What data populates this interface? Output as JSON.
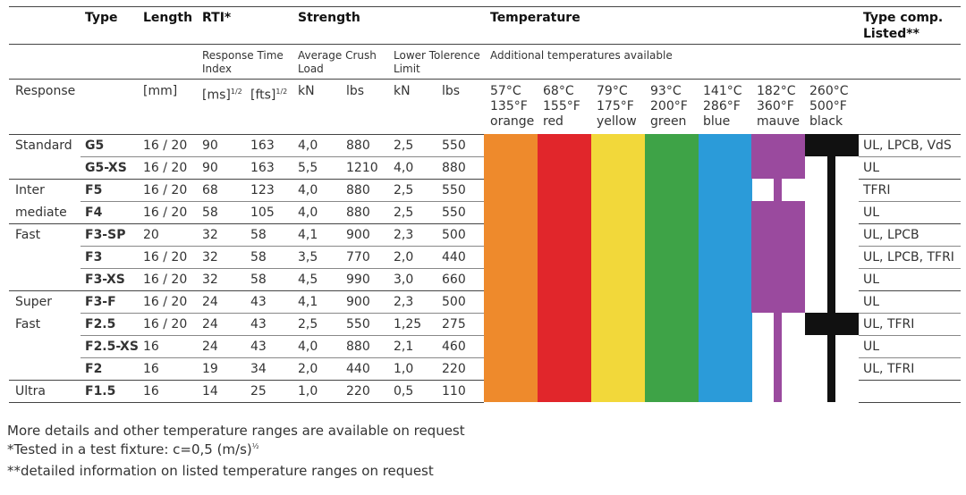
{
  "header": {
    "type": "Type",
    "length": "Length",
    "rti": "RTI*",
    "strength": "Strength",
    "temperature": "Temperature",
    "type_comp": "Type comp.",
    "listed": "Listed**"
  },
  "subheader": {
    "rti_desc": "Response Time Index",
    "crush_desc": "Average Crush Load",
    "tolerance_desc": "Lower Tolerence Limit",
    "temp_desc": "Additional temperatures available"
  },
  "units": {
    "response": "Response",
    "mm": "[mm]",
    "ms": "[ms]",
    "fts": "[fts]",
    "exp": "1/2",
    "kn1": "kN",
    "lbs1": "lbs",
    "kn2": "kN",
    "lbs2": "lbs"
  },
  "temperatures": [
    {
      "c": "57°C",
      "f": "135°F",
      "name": "orange",
      "color": "#ee8a2c"
    },
    {
      "c": "68°C",
      "f": "155°F",
      "name": "red",
      "color": "#e1262b"
    },
    {
      "c": "79°C",
      "f": "175°F",
      "name": "yellow",
      "color": "#f2d83a"
    },
    {
      "c": "93°C",
      "f": "200°F",
      "name": "green",
      "color": "#3ea347"
    },
    {
      "c": "141°C",
      "f": "286°F",
      "name": "blue",
      "color": "#2b9bd9"
    },
    {
      "c": "182°C",
      "f": "360°F",
      "name": "mauve",
      "color": "#9a4a9e"
    },
    {
      "c": "260°C",
      "f": "500°F",
      "name": "black",
      "color": "#111111"
    }
  ],
  "rows": [
    {
      "response": "Standard",
      "type": "G5",
      "length": "16 / 20",
      "ms": "90",
      "fts": "163",
      "kn": "4,0",
      "lbs": "880",
      "tkn": "2,5",
      "tlbs": "550",
      "listed": "UL, LPCB, VdS"
    },
    {
      "response": "",
      "type": "G5-XS",
      "length": "16 / 20",
      "ms": "90",
      "fts": "163",
      "kn": "5,5",
      "lbs": "1210",
      "tkn": "4,0",
      "tlbs": "880",
      "listed": "UL"
    },
    {
      "response": "Inter",
      "type": "F5",
      "length": "16 / 20",
      "ms": "68",
      "fts": "123",
      "kn": "4,0",
      "lbs": "880",
      "tkn": "2,5",
      "tlbs": "550",
      "listed": "TFRI"
    },
    {
      "response": "mediate",
      "type": "F4",
      "length": "16 / 20",
      "ms": "58",
      "fts": "105",
      "kn": "4,0",
      "lbs": "880",
      "tkn": "2,5",
      "tlbs": "550",
      "listed": "UL"
    },
    {
      "response": "Fast",
      "type": "F3-SP",
      "length": "20",
      "ms": "32",
      "fts": "58",
      "kn": "4,1",
      "lbs": "900",
      "tkn": "2,3",
      "tlbs": "500",
      "listed": "UL, LPCB"
    },
    {
      "response": "",
      "type": "F3",
      "length": "16 / 20",
      "ms": "32",
      "fts": "58",
      "kn": "3,5",
      "lbs": "770",
      "tkn": "2,0",
      "tlbs": "440",
      "listed": "UL, LPCB, TFRI"
    },
    {
      "response": "",
      "type": "F3-XS",
      "length": "16 / 20",
      "ms": "32",
      "fts": "58",
      "kn": "4,5",
      "lbs": "990",
      "tkn": "3,0",
      "tlbs": "660",
      "listed": "UL"
    },
    {
      "response": "Super",
      "type": "F3-F",
      "length": "16 / 20",
      "ms": "24",
      "fts": "43",
      "kn": "4,1",
      "lbs": "900",
      "tkn": "2,3",
      "tlbs": "500",
      "listed": "UL"
    },
    {
      "response": "Fast",
      "type": "F2.5",
      "length": "16 / 20",
      "ms": "24",
      "fts": "43",
      "kn": "2,5",
      "lbs": "550",
      "tkn": "1,25",
      "tlbs": "275",
      "listed": "UL, TFRI"
    },
    {
      "response": "",
      "type": "F2.5-XS",
      "length": "16",
      "ms": "24",
      "fts": "43",
      "kn": "4,0",
      "lbs": "880",
      "tkn": "2,1",
      "tlbs": "460",
      "listed": "UL"
    },
    {
      "response": "",
      "type": "F2",
      "length": "16",
      "ms": "19",
      "fts": "34",
      "kn": "2,0",
      "lbs": "440",
      "tkn": "1,0",
      "tlbs": "220",
      "listed": "UL, TFRI"
    },
    {
      "response": "Ultra",
      "type": "F1.5",
      "length": "16",
      "ms": "14",
      "fts": "25",
      "kn": "1,0",
      "lbs": "220",
      "tkn": "0,5",
      "tlbs": "110",
      "listed": ""
    }
  ],
  "notes": [
    "More details and other temperature ranges are available on request",
    "*Tested in a test fixture: c=0,5 (m/s)",
    "**detailed information on listed temperature ranges on request"
  ],
  "note_exp": "½"
}
